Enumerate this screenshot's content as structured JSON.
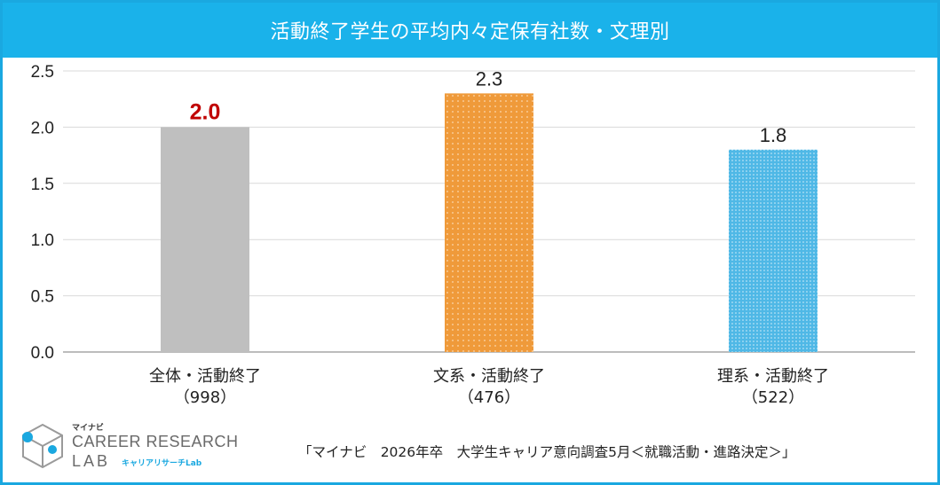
{
  "title": "活動終了学生の平均内々定保有社数・文理別",
  "chart_data": {
    "type": "bar",
    "categories": [
      {
        "label": "全体・活動終了",
        "n": "（998）",
        "value": 2.0,
        "value_label": "2.0",
        "color": "#bfbfbf",
        "label_color": "#c00000",
        "pattern": "none"
      },
      {
        "label": "文系・活動終了",
        "n": "（476）",
        "value": 2.3,
        "value_label": "2.3",
        "color": "#ef9a3a",
        "label_color": "#222222",
        "pattern": "dots"
      },
      {
        "label": "理系・活動終了",
        "n": "（522）",
        "value": 1.8,
        "value_label": "1.8",
        "color": "#4fb8e6",
        "label_color": "#222222",
        "pattern": "dots"
      }
    ],
    "yticks": [
      "0.0",
      "0.5",
      "1.0",
      "1.5",
      "2.0",
      "2.5"
    ],
    "ylim": [
      0,
      2.5
    ],
    "grid": true
  },
  "logo": {
    "katakana": "マイナビ",
    "line1": "CAREER RESEARCH",
    "line2": "LAB",
    "sub": "キャリアリサーチLab"
  },
  "source": "「マイナビ　2026年卒　大学生キャリア意向調査5月＜就職活動・進路決定＞」",
  "colors": {
    "accent": "#1ab2ea",
    "grid": "#d9d9d9",
    "axis": "#a6a6a6"
  }
}
